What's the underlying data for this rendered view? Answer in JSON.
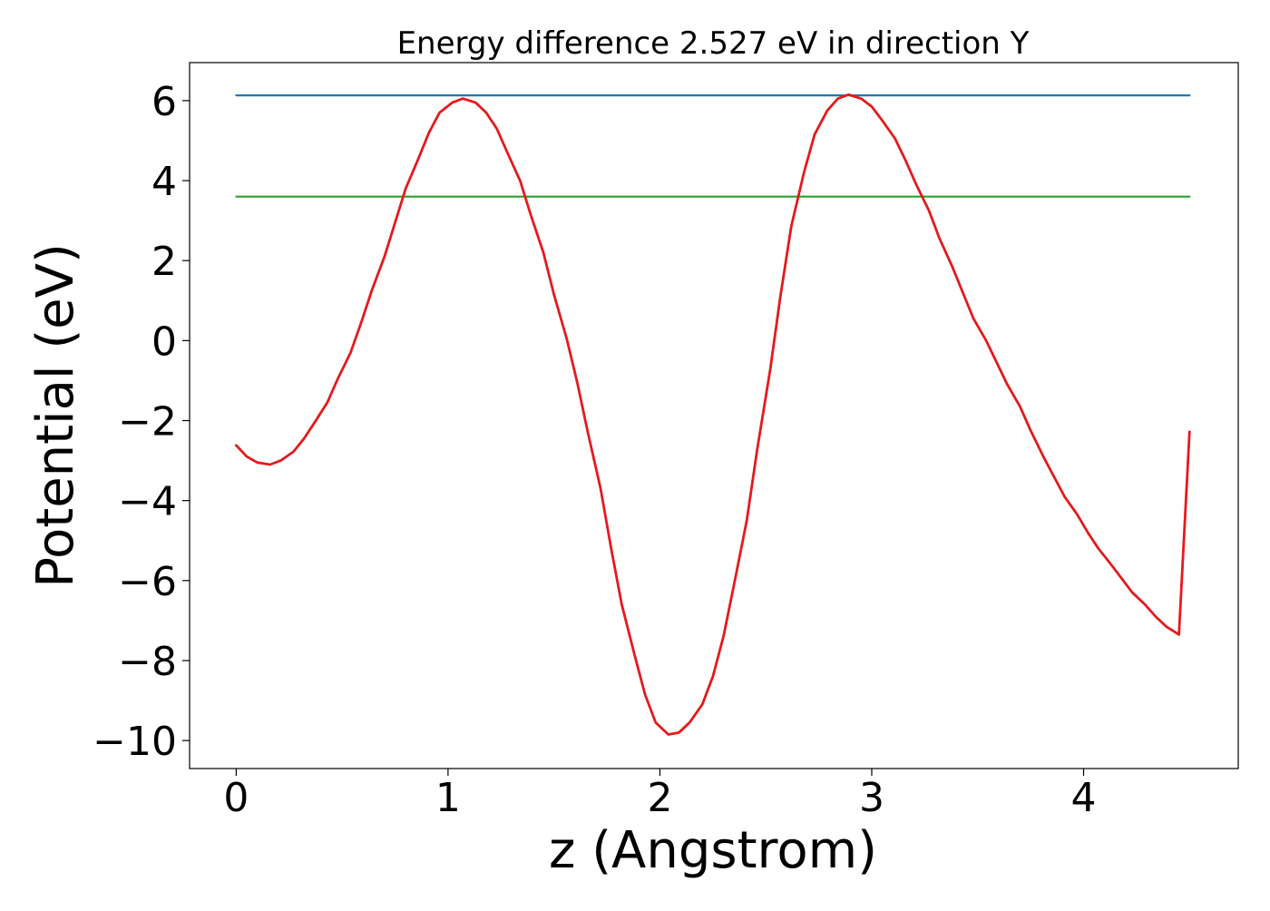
{
  "chart_data": {
    "type": "line",
    "title": "Energy difference 2.527 eV in direction Y",
    "xlabel": "z (Angstrom)",
    "ylabel": "Potential (eV)",
    "xlim": [
      -0.22,
      4.73
    ],
    "ylim": [
      -10.7,
      6.95
    ],
    "xticks": [
      {
        "value": 0,
        "label": "0"
      },
      {
        "value": 1,
        "label": "1"
      },
      {
        "value": 2,
        "label": "2"
      },
      {
        "value": 3,
        "label": "3"
      },
      {
        "value": 4,
        "label": "4"
      }
    ],
    "yticks": [
      {
        "value": 6,
        "label": "6"
      },
      {
        "value": 4,
        "label": "4"
      },
      {
        "value": 2,
        "label": "2"
      },
      {
        "value": 0,
        "label": "0"
      },
      {
        "value": -2,
        "label": "−2"
      },
      {
        "value": -4,
        "label": "−4"
      },
      {
        "value": -6,
        "label": "−6"
      },
      {
        "value": -8,
        "label": "−8"
      },
      {
        "value": -10,
        "label": "−10"
      }
    ],
    "grid": false,
    "series": [
      {
        "color": "#1f77b4",
        "x": [
          0,
          4.5
        ],
        "y": [
          6.13,
          6.13
        ]
      },
      {
        "color": "#2ca02c",
        "x": [
          0,
          4.5
        ],
        "y": [
          3.6,
          3.6
        ]
      },
      {
        "color": "#e41a1c",
        "x": [
          0.0,
          0.05,
          0.1,
          0.16,
          0.21,
          0.27,
          0.32,
          0.37,
          0.43,
          0.48,
          0.54,
          0.59,
          0.64,
          0.7,
          0.75,
          0.8,
          0.86,
          0.91,
          0.96,
          1.02,
          1.07,
          1.13,
          1.18,
          1.23,
          1.28,
          1.34,
          1.39,
          1.45,
          1.5,
          1.56,
          1.61,
          1.66,
          1.72,
          1.77,
          1.82,
          1.88,
          1.93,
          1.98,
          2.04,
          2.09,
          2.14,
          2.2,
          2.25,
          2.3,
          2.35,
          2.41,
          2.46,
          2.52,
          2.57,
          2.62,
          2.68,
          2.73,
          2.79,
          2.84,
          2.89,
          2.95,
          3.0,
          3.05,
          3.11,
          3.16,
          3.21,
          3.27,
          3.32,
          3.38,
          3.43,
          3.48,
          3.54,
          3.59,
          3.64,
          3.7,
          3.75,
          3.81,
          3.86,
          3.91,
          3.97,
          4.02,
          4.07,
          4.13,
          4.18,
          4.23,
          4.29,
          4.34,
          4.39,
          4.45,
          4.5
        ],
        "y": [
          -2.62,
          -2.9,
          -3.05,
          -3.1,
          -3.0,
          -2.78,
          -2.45,
          -2.05,
          -1.55,
          -0.95,
          -0.3,
          0.45,
          1.25,
          2.1,
          2.95,
          3.8,
          4.55,
          5.2,
          5.7,
          5.95,
          6.05,
          5.95,
          5.7,
          5.3,
          4.7,
          4.0,
          3.15,
          2.2,
          1.15,
          0.05,
          -1.05,
          -2.3,
          -3.7,
          -5.2,
          -6.6,
          -7.85,
          -8.85,
          -9.55,
          -9.85,
          -9.8,
          -9.55,
          -9.1,
          -8.4,
          -7.4,
          -6.1,
          -4.5,
          -2.7,
          -0.75,
          1.15,
          2.85,
          4.2,
          5.15,
          5.75,
          6.05,
          6.15,
          6.05,
          5.85,
          5.5,
          5.05,
          4.5,
          3.9,
          3.25,
          2.55,
          1.85,
          1.2,
          0.55,
          0.0,
          -0.55,
          -1.1,
          -1.65,
          -2.25,
          -2.9,
          -3.4,
          -3.9,
          -4.35,
          -4.8,
          -5.2,
          -5.6,
          -5.95,
          -6.3,
          -6.6,
          -6.9,
          -7.15,
          -7.35,
          -2.28
        ]
      }
    ]
  }
}
